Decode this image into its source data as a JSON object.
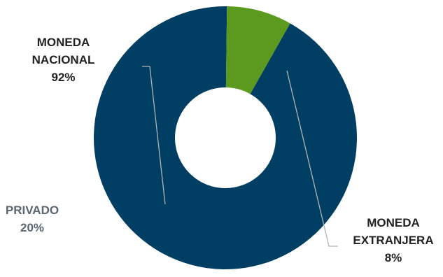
{
  "chart_data": {
    "type": "pie",
    "donut": true,
    "slices": [
      {
        "label_lines": [
          "MONEDA",
          "NACIONAL"
        ],
        "value": 92,
        "value_label": "92%",
        "color": "#003f63"
      },
      {
        "label_lines": [
          "MONEDA",
          "EXTRANJERA"
        ],
        "value": 8,
        "value_label": "8%",
        "color": "#5b9a1f"
      }
    ],
    "extra_labels": [
      {
        "label": "PRIVADO",
        "value_label": "20%"
      }
    ],
    "leader_line_color": "#b3b3b3"
  }
}
